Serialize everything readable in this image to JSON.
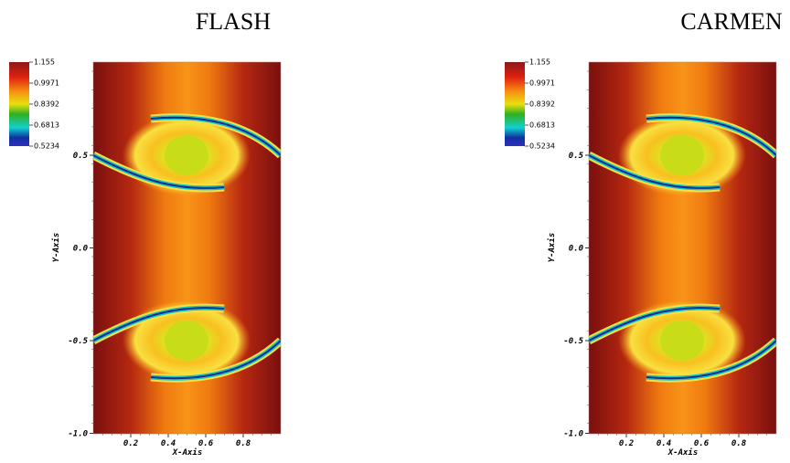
{
  "panels": [
    {
      "title": "FLASH",
      "colorbar_ticks": [
        "1.155",
        "0.9971",
        "0.8392",
        "0.6813",
        "0.5234"
      ],
      "y_label": "Y-Axis",
      "y_ticks": [
        "0.5",
        "0.0",
        "-0.5",
        "-1.0"
      ],
      "x_label": "X-Axis",
      "x_ticks": [
        "0.2",
        "0.4",
        "0.6",
        "0.8"
      ]
    },
    {
      "title": "CARMEN",
      "colorbar_ticks": [
        "1.155",
        "0.9971",
        "0.8392",
        "0.6813",
        "0.5234"
      ],
      "y_label": "Y-Axis",
      "y_ticks": [
        "0.5",
        "0.0",
        "-0.5",
        "-1.0"
      ],
      "x_label": "X-Axis",
      "x_ticks": [
        "0.2",
        "0.4",
        "0.6",
        "0.8"
      ]
    }
  ]
}
